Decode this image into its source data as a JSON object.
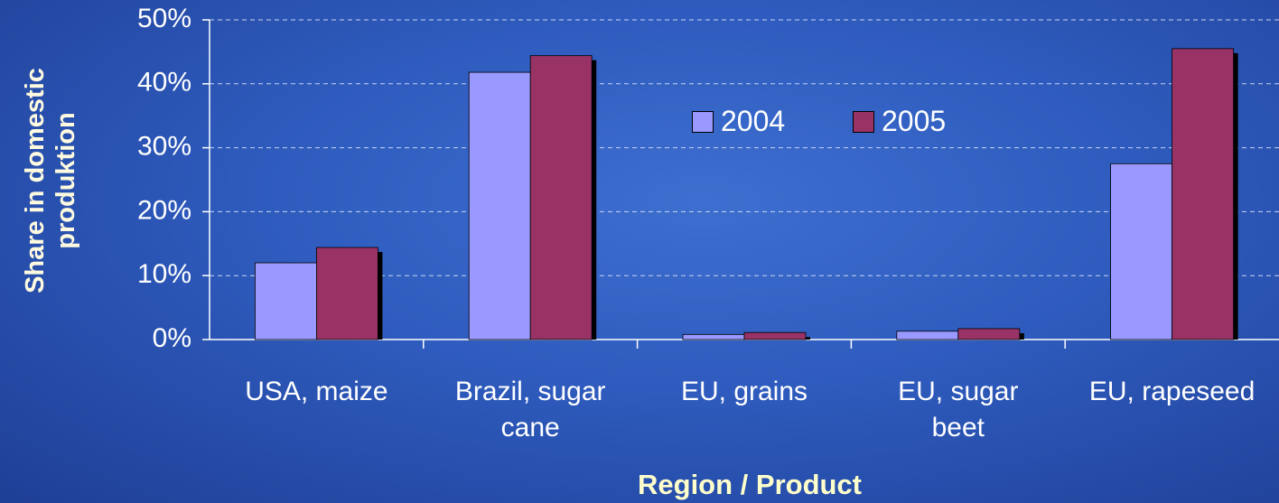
{
  "chart_data": {
    "type": "bar",
    "categories": [
      "USA, maize",
      "Brazil, sugar cane",
      "EU, grains",
      "EU, sugar beet",
      "EU, rapeseed"
    ],
    "series": [
      {
        "name": "2004",
        "color": "#9999ff",
        "values": [
          12.0,
          41.8,
          0.8,
          1.3,
          27.5
        ]
      },
      {
        "name": "2005",
        "color": "#993366",
        "values": [
          14.4,
          44.4,
          1.1,
          1.7,
          45.5
        ]
      }
    ],
    "ylim": [
      0,
      50
    ],
    "yticks": [
      {
        "value": 0,
        "label": "0%"
      },
      {
        "value": 10,
        "label": "10%"
      },
      {
        "value": 20,
        "label": "20%"
      },
      {
        "value": 30,
        "label": "30%"
      },
      {
        "value": 40,
        "label": "40%"
      },
      {
        "value": 50,
        "label": "50%"
      }
    ],
    "y_axis_label": "Share in domestic produktion",
    "x_axis_label": "Region / Product",
    "grid": true
  }
}
